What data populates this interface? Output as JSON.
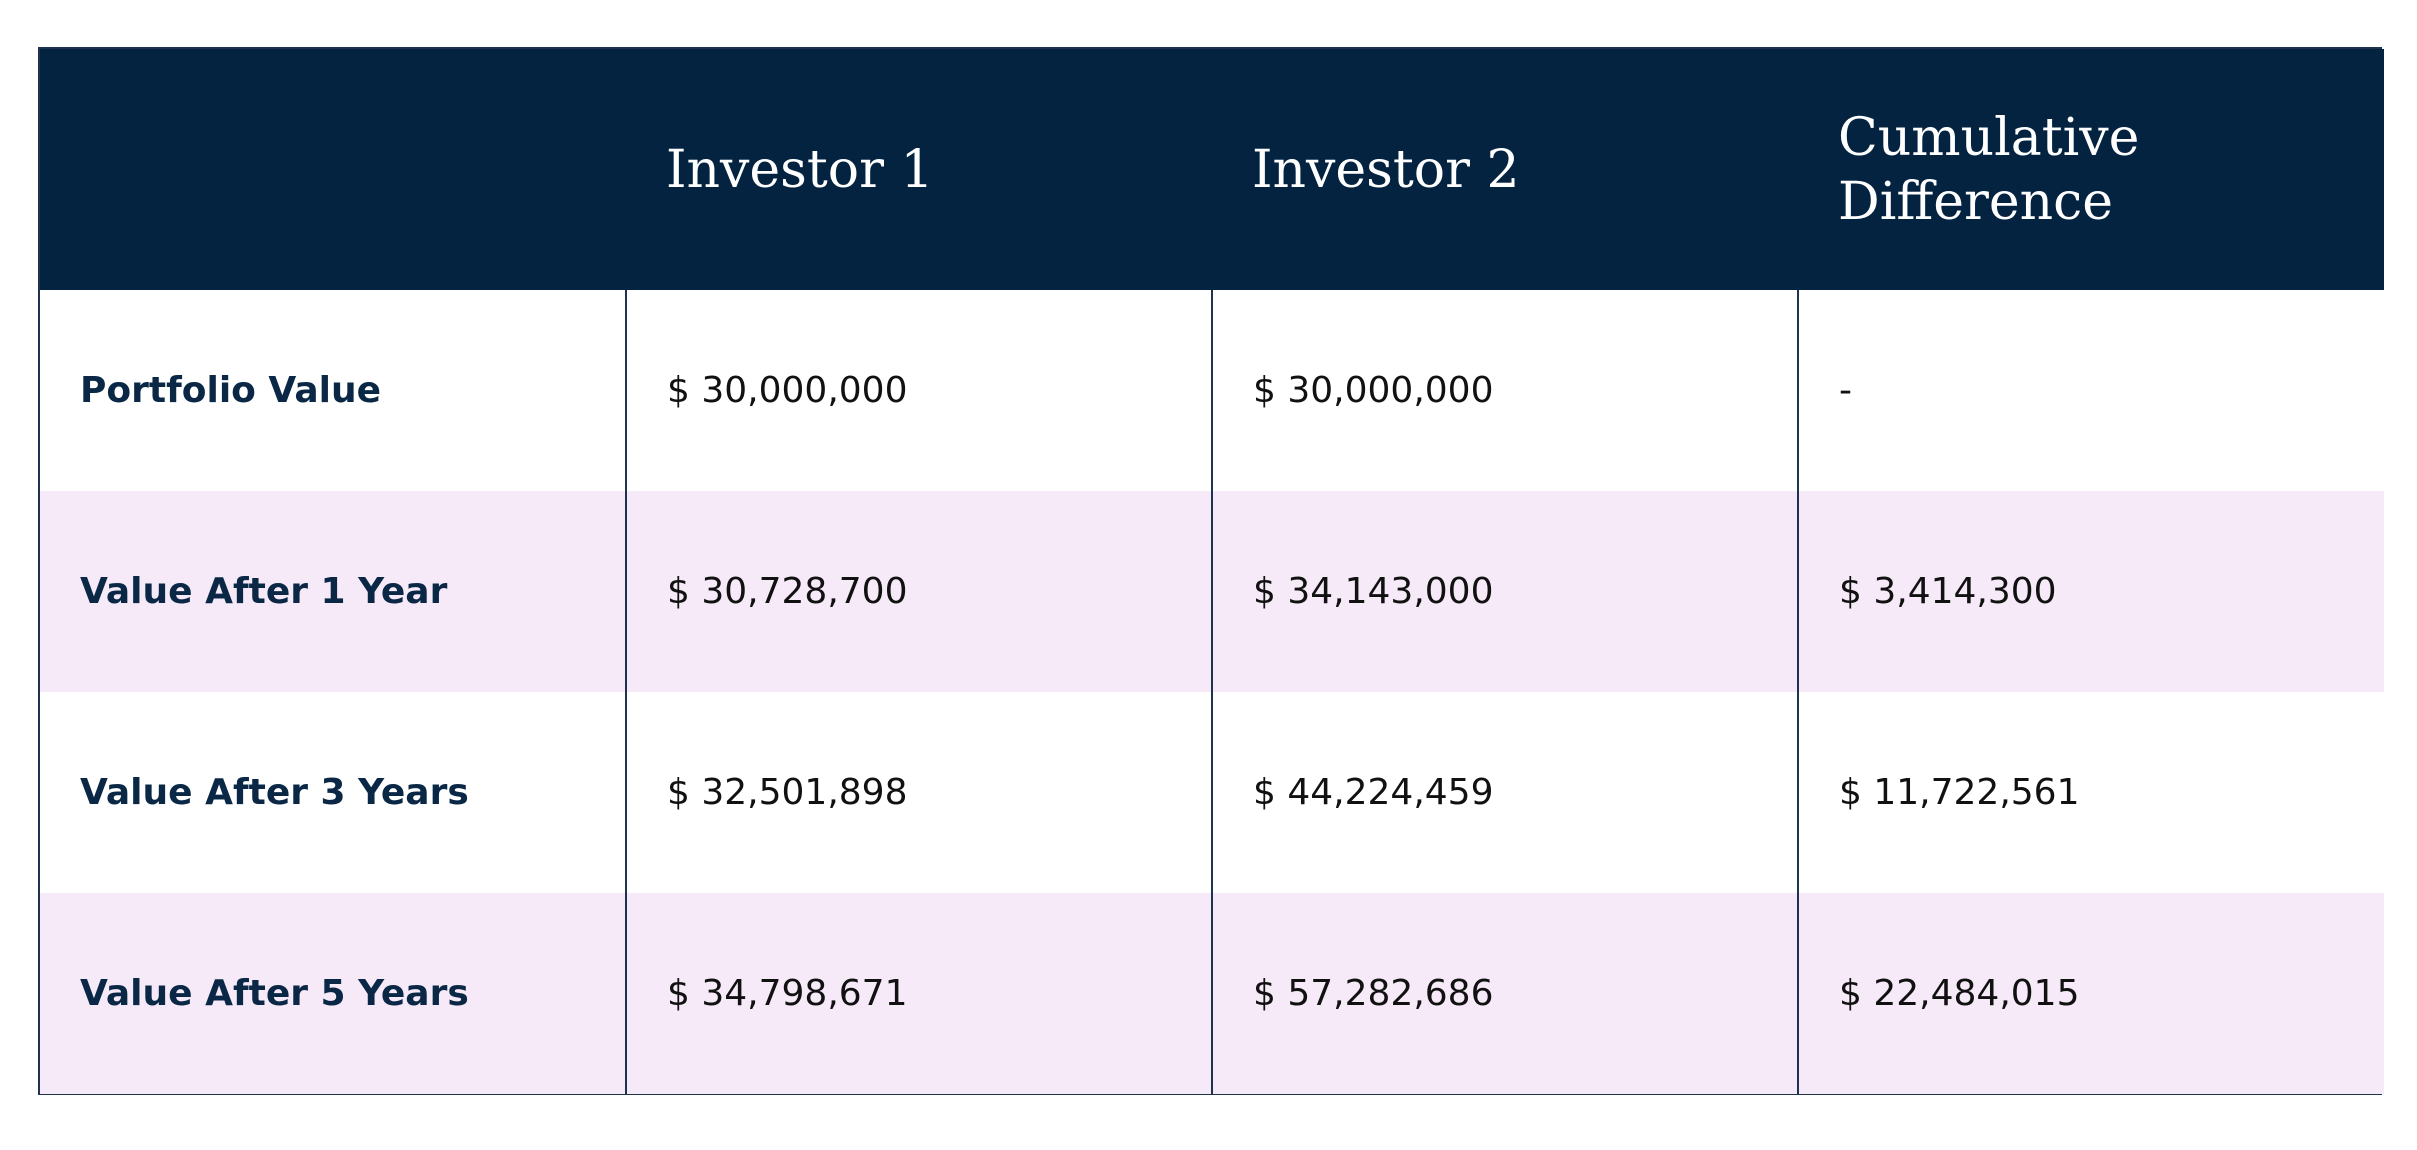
{
  "chart_data": {
    "type": "table",
    "columns": [
      "",
      "Investor 1",
      "Investor 2",
      "Cumulative Difference"
    ],
    "header_lines": {
      "col3": [
        "Cumulative",
        "Difference"
      ]
    },
    "rows": [
      {
        "label": "Portfolio Value",
        "investor1": "$ 30,000,000",
        "investor2": "$ 30,000,000",
        "difference": "-"
      },
      {
        "label": "Value After 1 Year",
        "investor1": "$ 30,728,700",
        "investor2": "$ 34,143,000",
        "difference": "$ 3,414,300"
      },
      {
        "label": "Value After 3 Years",
        "investor1": "$ 32,501,898",
        "investor2": "$ 44,224,459",
        "difference": "$ 11,722,561"
      },
      {
        "label": "Value After 5 Years",
        "investor1": "$ 34,798,671",
        "investor2": "$ 57,282,686",
        "difference": "$ 22,484,015"
      }
    ],
    "colors": {
      "header_bg": "#032340",
      "header_text": "#ffffff",
      "stripe_bg": "#f6eaf8",
      "row_bg": "#ffffff",
      "border": "#1d3350",
      "label_text": "#0a2846"
    }
  }
}
